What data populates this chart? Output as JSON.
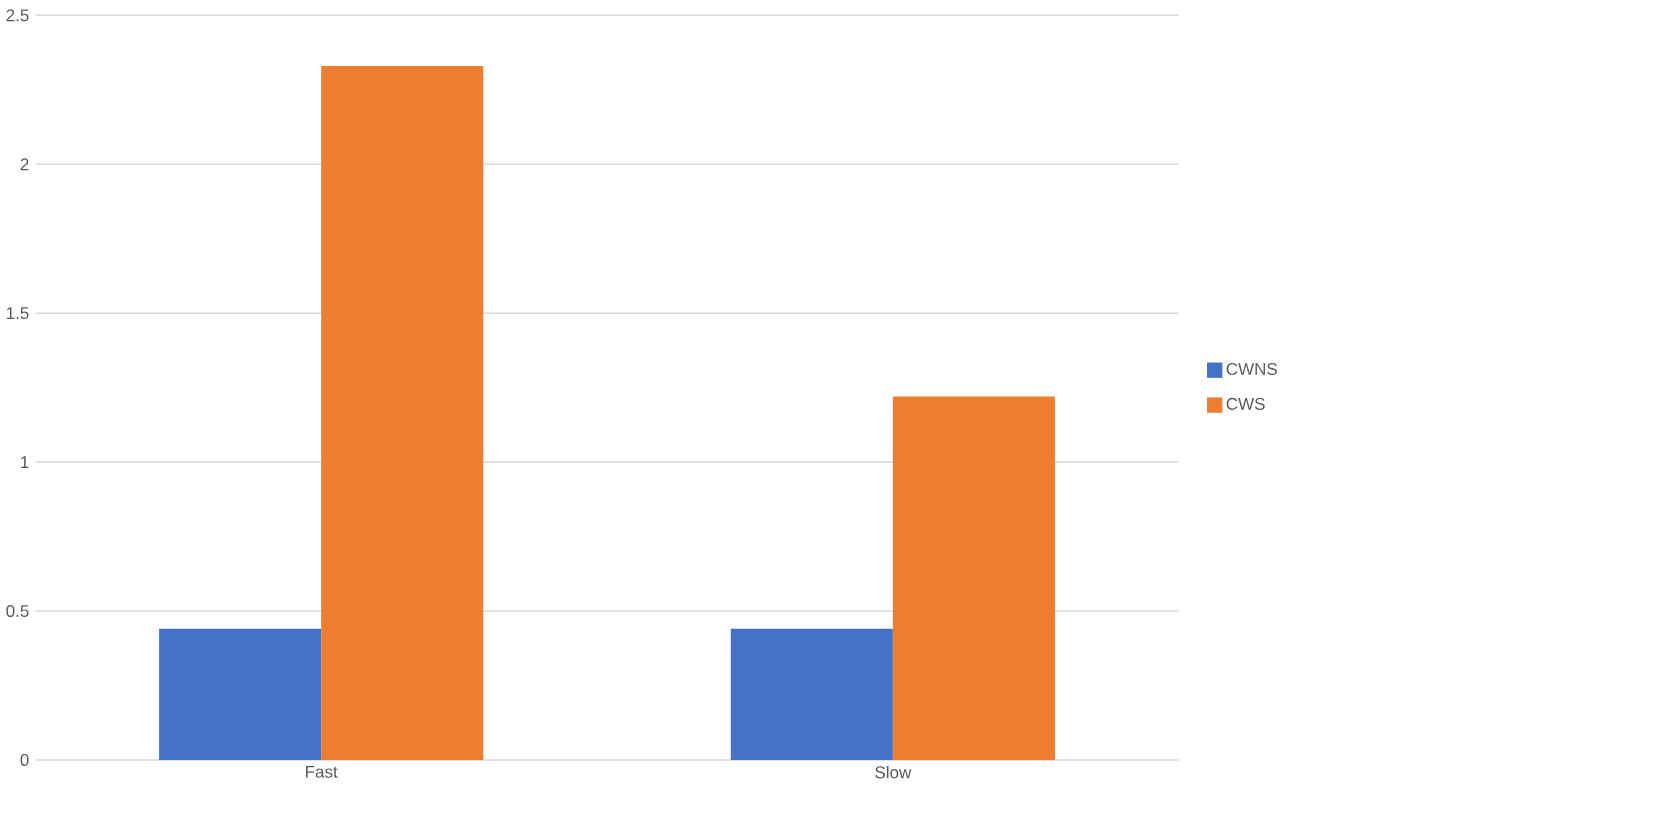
{
  "chart_data": {
    "type": "bar",
    "categories": [
      "Fast",
      "Slow"
    ],
    "series": [
      {
        "name": "CWNS",
        "color": "#4472c4",
        "values": [
          0.44,
          0.44
        ]
      },
      {
        "name": "CWS",
        "color": "#ed7d31",
        "values": [
          2.33,
          1.22
        ]
      }
    ],
    "ylim": [
      0,
      2.5
    ],
    "yticks": [
      0,
      0.5,
      1,
      1.5,
      2,
      2.5
    ],
    "grid": "y",
    "legend": "right"
  }
}
